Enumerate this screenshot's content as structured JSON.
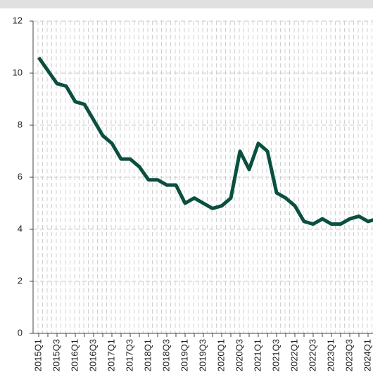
{
  "chart_data": {
    "type": "line",
    "categories": [
      "2015Q1",
      null,
      "2015Q3",
      null,
      "2016Q1",
      null,
      "2016Q3",
      null,
      "2017Q1",
      null,
      "2017Q3",
      null,
      "2018Q1",
      null,
      "2018Q3",
      null,
      "2019Q1",
      null,
      "2019Q3",
      null,
      "2020Q1",
      null,
      "2020Q3",
      null,
      "2021Q1",
      null,
      "2021Q3",
      null,
      "2022Q1",
      null,
      "2022Q3",
      null,
      "2023Q1",
      null,
      "2023Q3",
      null,
      "2024Q1",
      null
    ],
    "series": [
      {
        "color": "#0a4f3f",
        "values": [
          10.6,
          10.1,
          9.6,
          9.5,
          8.9,
          8.8,
          8.2,
          7.6,
          7.3,
          6.7,
          6.7,
          6.4,
          5.9,
          5.9,
          5.7,
          5.7,
          5.0,
          5.2,
          5.0,
          4.8,
          4.9,
          5.2,
          7.0,
          6.3,
          7.3,
          7.0,
          5.4,
          5.2,
          4.9,
          4.3,
          4.2,
          4.4,
          4.2,
          4.2,
          4.4,
          4.5,
          4.3,
          4.4
        ]
      }
    ],
    "ylim": [
      0,
      12
    ],
    "yticks": [
      0,
      2,
      4,
      6,
      8,
      10,
      12
    ],
    "grid": true
  }
}
